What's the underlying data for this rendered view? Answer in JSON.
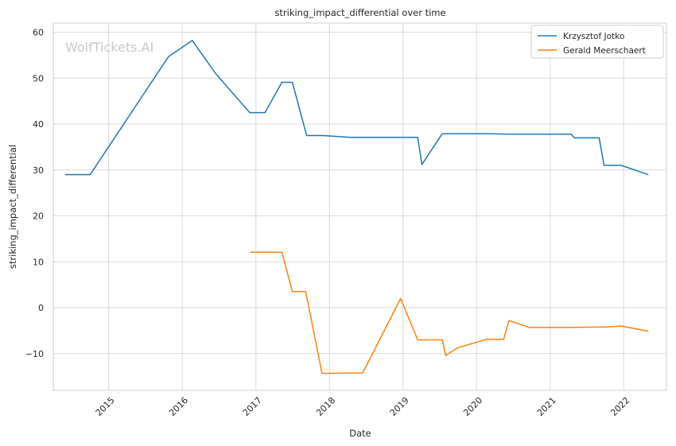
{
  "chart_data": {
    "type": "line",
    "title": "striking_impact_differential over time",
    "xlabel": "Date",
    "ylabel": "striking_impact_differential",
    "watermark": "WolfTickets.AI",
    "xlim": [
      "2014-04-01",
      "2022-08-01"
    ],
    "ylim": [
      -18,
      62
    ],
    "x_ticks": [
      "2015",
      "2016",
      "2017",
      "2018",
      "2019",
      "2020",
      "2021",
      "2022"
    ],
    "y_ticks": [
      -10,
      0,
      10,
      20,
      30,
      40,
      50,
      60
    ],
    "grid": true,
    "legend_position": "top-right",
    "colors": {
      "Krzysztof Jotko": "#1f77b4",
      "Gerald Meerschaert": "#ff7f0e",
      "grid": "#d3d3d3",
      "axis": "#cccccc"
    },
    "series": [
      {
        "name": "Krzysztof Jotko",
        "color": "#1f77b4",
        "points": [
          [
            "2014-06-01",
            29.0
          ],
          [
            "2014-10-01",
            29.0
          ],
          [
            "2015-10-25",
            54.7
          ],
          [
            "2016-02-20",
            58.2
          ],
          [
            "2016-06-15",
            51.0
          ],
          [
            "2016-12-01",
            42.5
          ],
          [
            "2017-02-15",
            42.5
          ],
          [
            "2017-05-10",
            49.1
          ],
          [
            "2017-07-01",
            49.1
          ],
          [
            "2017-09-10",
            37.5
          ],
          [
            "2017-12-01",
            37.5
          ],
          [
            "2018-04-15",
            37.1
          ],
          [
            "2019-03-15",
            37.1
          ],
          [
            "2019-04-05",
            31.2
          ],
          [
            "2019-07-15",
            37.9
          ],
          [
            "2020-03-15",
            37.9
          ],
          [
            "2020-06-01",
            37.8
          ],
          [
            "2021-04-15",
            37.8
          ],
          [
            "2021-05-01",
            37.0
          ],
          [
            "2021-09-01",
            37.0
          ],
          [
            "2021-09-25",
            31.0
          ],
          [
            "2021-12-20",
            31.0
          ],
          [
            "2022-05-01",
            29.0
          ]
        ]
      },
      {
        "name": "Gerald Meerschaert",
        "color": "#ff7f0e",
        "points": [
          [
            "2016-12-05",
            12.1
          ],
          [
            "2017-05-10",
            12.1
          ],
          [
            "2017-07-01",
            3.5
          ],
          [
            "2017-09-05",
            3.5
          ],
          [
            "2017-11-25",
            -14.3
          ],
          [
            "2018-06-15",
            -14.2
          ],
          [
            "2018-12-20",
            2.0
          ],
          [
            "2019-03-15",
            -7.0
          ],
          [
            "2019-07-15",
            -7.0
          ],
          [
            "2019-08-01",
            -10.4
          ],
          [
            "2019-10-01",
            -8.7
          ],
          [
            "2020-02-20",
            -6.9
          ],
          [
            "2020-05-15",
            -6.9
          ],
          [
            "2020-06-10",
            -2.8
          ],
          [
            "2020-09-20",
            -4.3
          ],
          [
            "2021-04-01",
            -4.3
          ],
          [
            "2021-10-01",
            -4.2
          ],
          [
            "2021-12-20",
            -4.0
          ],
          [
            "2022-05-01",
            -5.1
          ]
        ]
      }
    ]
  }
}
